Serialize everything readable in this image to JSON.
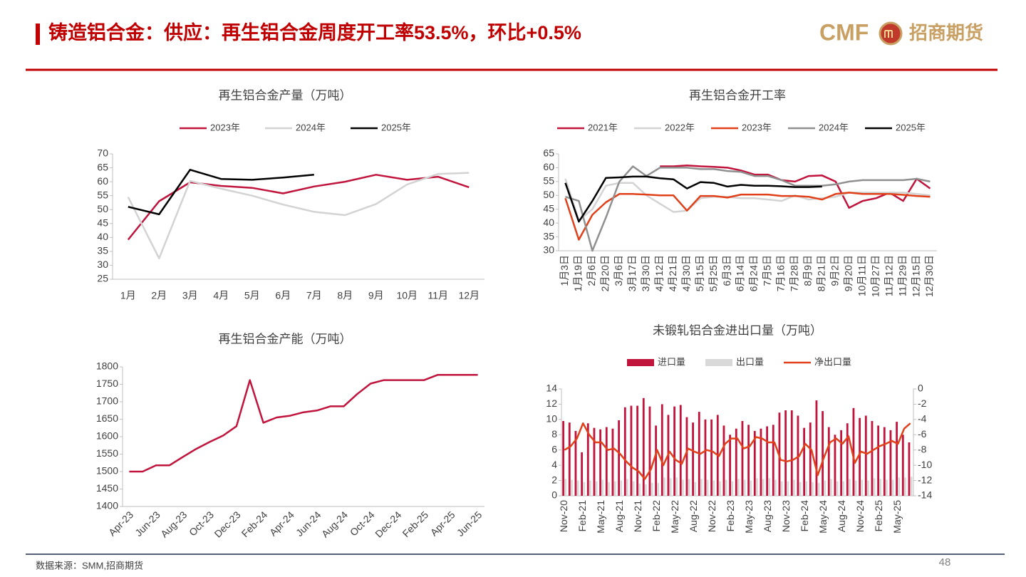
{
  "title": "铸造铝合金：供应：再生铝合金周度开工率53.5%，环比+0.5%",
  "logo": {
    "brand": "CMF",
    "name": "招商期货"
  },
  "source": "数据来源：SMM,招商期货",
  "page_number": "48",
  "chart_data": [
    {
      "type": "line",
      "title": "再生铝合金产量（万吨）",
      "categories": [
        "1月",
        "2月",
        "3月",
        "4月",
        "5月",
        "6月",
        "7月",
        "8月",
        "9月",
        "10月",
        "11月",
        "12月"
      ],
      "series": [
        {
          "name": "2023年",
          "color": "#c0143c",
          "values": [
            39.2,
            53,
            59.8,
            58.5,
            57.8,
            55.8,
            58.3,
            60,
            62.5,
            60.7,
            61.8,
            58
          ]
        },
        {
          "name": "2024年",
          "color": "#d3d3d3",
          "values": [
            54.5,
            32.5,
            60.3,
            57.5,
            55,
            51.8,
            49.2,
            48,
            52,
            59,
            62.8,
            63.2
          ]
        },
        {
          "name": "2025年",
          "color": "#000000",
          "values": [
            51,
            48.3,
            64.3,
            61,
            60.7,
            61.5,
            62.5,
            null,
            null,
            null,
            null,
            null
          ]
        }
      ],
      "ylim": [
        25,
        70
      ],
      "yticks": [
        25,
        30,
        35,
        40,
        45,
        50,
        55,
        60,
        65,
        70
      ]
    },
    {
      "type": "line",
      "title": "再生铝合金开工率",
      "categories": [
        "1月3日",
        "1月19日",
        "2月6日",
        "2月20日",
        "3月6日",
        "3月17日",
        "3月30日",
        "4月12日",
        "4月21日",
        "4月30日",
        "5月15日",
        "5月25日",
        "6月3日",
        "6月14日",
        "6月24日",
        "7月5日",
        "7月16日",
        "7月28日",
        "8月9日",
        "8月21日",
        "9月2日",
        "9月20日",
        "10月11日",
        "10月27日",
        "11月12日",
        "11月29日",
        "12月15日",
        "12月30日"
      ],
      "series": [
        {
          "name": "2021年",
          "color": "#c0143c",
          "values": [
            null,
            null,
            null,
            null,
            null,
            null,
            null,
            60.5,
            60.5,
            60.8,
            60.5,
            60.3,
            60,
            59,
            57.5,
            57.5,
            55.5,
            55,
            57,
            57.2,
            55,
            45.5,
            48,
            49,
            51,
            48,
            56,
            52.5
          ]
        },
        {
          "name": "2022年",
          "color": "#d3d3d3",
          "values": [
            56,
            41,
            45,
            53.5,
            54.5,
            54.5,
            50,
            47,
            44,
            44.5,
            49,
            49.5,
            49.5,
            49,
            49,
            48.5,
            48,
            50,
            48.5,
            49,
            49.5,
            51,
            51,
            51,
            51,
            51,
            50.5,
            50
          ]
        },
        {
          "name": "2023年",
          "color": "#e0401a",
          "values": [
            49,
            34,
            43,
            47.5,
            50.5,
            50.5,
            50.3,
            50,
            50,
            44.5,
            49.8,
            49.8,
            49.2,
            50.3,
            50.3,
            50.3,
            49.8,
            49.8,
            49.5,
            48.5,
            50.5,
            51,
            50.5,
            50.5,
            50.5,
            50.2,
            49.8,
            49.5
          ]
        },
        {
          "name": "2024年",
          "color": "#909090",
          "values": [
            49.5,
            48,
            30,
            42,
            55,
            60.5,
            57,
            60,
            60,
            60,
            59.5,
            59.5,
            58.8,
            58.5,
            57,
            57,
            55.5,
            53.5,
            53.5,
            53.5,
            54,
            55,
            55.5,
            55.5,
            55.5,
            55.5,
            56,
            55
          ]
        },
        {
          "name": "2025年",
          "color": "#000000",
          "values": [
            54.5,
            40.5,
            48,
            56.3,
            56.5,
            56.8,
            56.8,
            56.2,
            55.8,
            52.5,
            54.8,
            54.5,
            53.2,
            53.8,
            53.5,
            53.5,
            53.3,
            53,
            53,
            53.2,
            null,
            null,
            null,
            null,
            null,
            null,
            null,
            null
          ]
        }
      ],
      "ylim": [
        30,
        65
      ],
      "yticks": [
        30,
        35,
        40,
        45,
        50,
        55,
        60,
        65
      ]
    },
    {
      "type": "line",
      "title": "再生铝合金产能（万吨）",
      "categories": [
        "Apr-23",
        null,
        "Jun-23",
        null,
        "Aug-23",
        null,
        "Oct-23",
        null,
        "Dec-23",
        null,
        "Feb-24",
        null,
        "Apr-24",
        null,
        "Jun-24",
        null,
        "Aug-24",
        null,
        "Oct-24",
        null,
        "Dec-24",
        null,
        "Feb-25",
        null,
        "Apr-25",
        null,
        "Jun-25"
      ],
      "series": [
        {
          "color": "#c0143c",
          "values": [
            1500,
            1500,
            1518,
            1518,
            1542,
            1565,
            1585,
            1603,
            1630,
            1762,
            1640,
            1655,
            1660,
            1670,
            1675,
            1687,
            1687,
            1722,
            1752,
            1762,
            1762,
            1762,
            1762,
            1777,
            1777,
            1777,
            1777
          ]
        }
      ],
      "ylim": [
        1400,
        1800
      ],
      "yticks": [
        1400,
        1450,
        1500,
        1550,
        1600,
        1650,
        1700,
        1750,
        1800
      ]
    },
    {
      "type": "bar",
      "title": "未锻轧铝合金进出口量（万吨）",
      "categories": [
        "Nov-20",
        null,
        null,
        "Feb-21",
        null,
        null,
        "May-21",
        null,
        null,
        "Aug-21",
        null,
        null,
        "Nov-21",
        null,
        null,
        "Feb-22",
        null,
        null,
        "May-22",
        null,
        null,
        "Aug-22",
        null,
        null,
        "Nov-22",
        null,
        null,
        "Feb-23",
        null,
        null,
        "May-23",
        null,
        null,
        "Aug-23",
        null,
        null,
        "Nov-23",
        null,
        null,
        "Feb-24",
        null,
        null,
        "May-24",
        null,
        null,
        "Aug-24",
        null,
        null,
        "Nov-24",
        null,
        null,
        "Feb-25",
        null,
        null,
        "May-25",
        null,
        null
      ],
      "series": [
        {
          "name": "进口量",
          "type": "bar",
          "color": "#c0143c",
          "values": [
            9.8,
            9.6,
            8.5,
            5.7,
            9.5,
            8.9,
            8.7,
            9.0,
            8.8,
            9.9,
            11.6,
            11.8,
            11.8,
            12.8,
            11.7,
            9.2,
            12.0,
            10.6,
            11.7,
            11.9,
            10.3,
            9.6,
            11.0,
            10.0,
            10.0,
            10.6,
            9.2,
            8.0,
            8.8,
            9.8,
            9.3,
            8.5,
            8.8,
            9.1,
            9.3,
            10.9,
            11.2,
            11.2,
            10.5,
            8.9,
            9.6,
            12.5,
            11.1,
            9.0,
            8.0,
            8.6,
            9.5,
            11.5,
            10.2,
            10.5,
            9.8,
            9.2,
            9.0,
            8.6,
            9.7,
            8.0,
            7.0
          ]
        },
        {
          "name": "出口量",
          "type": "bar",
          "color": "#d9d9d9",
          "values": [
            2.2,
            2.1,
            2.0,
            1.8,
            2.0,
            1.9,
            2.1,
            1.8,
            1.9,
            2.0,
            2.2,
            1.9,
            1.6,
            1.5,
            1.7,
            1.7,
            2.4,
            2.3,
            2.4,
            2.1,
            2.2,
            1.8,
            2.2,
            2.1,
            2.0,
            1.9,
            2.1,
            1.9,
            2.2,
            2.1,
            2.0,
            2.3,
            2.2,
            2.3,
            2.1,
            1.9,
            1.9,
            2.1,
            1.8,
            1.9,
            1.8,
            1.7,
            2.0,
            2.2,
            1.9,
            1.9,
            2.2,
            2.0,
            2.1,
            2.0,
            2.3,
            2.2,
            2.1,
            2.1,
            2.4,
            2.4,
            2.5
          ]
        },
        {
          "name": "净出口量",
          "type": "line",
          "axis": "y2",
          "color": "#e0401a",
          "values": [
            -8,
            -7.5,
            -6.5,
            -4.5,
            -6,
            -7,
            -7,
            -8,
            -7.8,
            -8.5,
            -9.5,
            -10.3,
            -10.8,
            -11.8,
            -10.5,
            -8,
            -10,
            -8.2,
            -9.3,
            -9.8,
            -7.8,
            -8.2,
            -8.5,
            -8,
            -8.2,
            -8.8,
            -7.2,
            -6.5,
            -6.5,
            -7.8,
            -7.5,
            -6.3,
            -6.5,
            -7,
            -7,
            -9.3,
            -9.5,
            -9.3,
            -8.8,
            -7.2,
            -8,
            -11.3,
            -9,
            -7,
            -6.5,
            -7.2,
            -6.2,
            -9.7,
            -8.2,
            -8.5,
            -8,
            -7.5,
            -7.2,
            -6.8,
            -7.2,
            -5.2,
            -4.5
          ]
        }
      ],
      "ylim": [
        0,
        14
      ],
      "yticks": [
        0,
        2,
        4,
        6,
        8,
        10,
        12,
        14
      ],
      "y2lim": [
        -14,
        0
      ],
      "y2ticks": [
        -14,
        -12,
        -10,
        -8,
        -6,
        -4,
        -2,
        0
      ]
    }
  ]
}
